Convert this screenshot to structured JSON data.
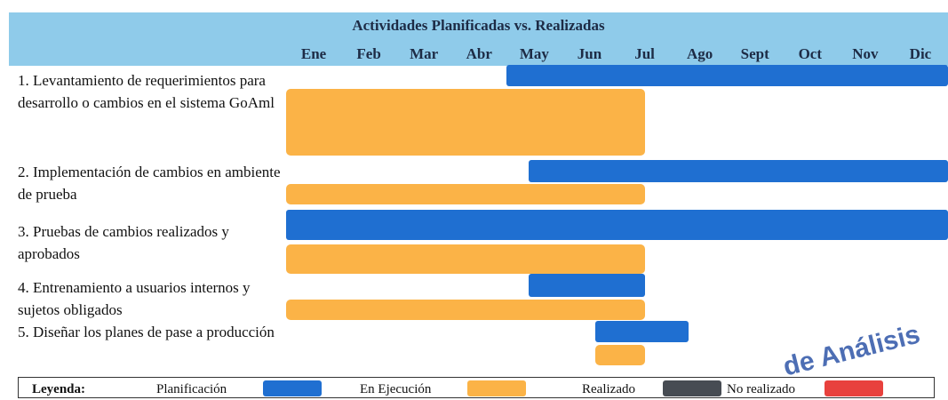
{
  "chart_data": {
    "type": "gantt",
    "title": "Actividades Planificadas vs. Realizadas",
    "categories": [
      "Ene",
      "Feb",
      "Mar",
      "Abr",
      "May",
      "Jun",
      "Jul",
      "Ago",
      "Sept",
      "Oct",
      "Nov",
      "Dic"
    ],
    "xlim": [
      0,
      12
    ],
    "tasks": [
      {
        "label": "1. Levantamiento de requerimientos para desarrollo o cambios en el sistema GoAml",
        "planned": [
          4,
          12
        ],
        "executed": [
          0,
          6.5
        ]
      },
      {
        "label": "2. Implementación de cambios en ambiente de prueba",
        "planned": [
          4.4,
          12
        ],
        "executed": [
          0,
          6.5
        ]
      },
      {
        "label": "3. Pruebas de cambios realizados y aprobados",
        "planned": [
          0,
          12
        ],
        "executed": [
          0,
          6.5
        ]
      },
      {
        "label": "4. Entrenamiento a usuarios internos y sujetos obligados",
        "planned": [
          4.4,
          6.5
        ],
        "executed": [
          0,
          6.5
        ]
      },
      {
        "label": "5. Diseñar los planes de pase a producción",
        "planned": [
          5.6,
          7.3
        ],
        "executed": [
          5.6,
          6.5
        ]
      }
    ],
    "legend_title": "Leyenda:",
    "legend": [
      {
        "name": "Planificación",
        "color": "#1f6fd1"
      },
      {
        "name": "En Ejecución",
        "color": "#fbb347"
      },
      {
        "name": "Realizado",
        "color": "#474c53"
      },
      {
        "name": "No realizado",
        "color": "#e8413d"
      }
    ]
  },
  "stamp": "de Análisis"
}
